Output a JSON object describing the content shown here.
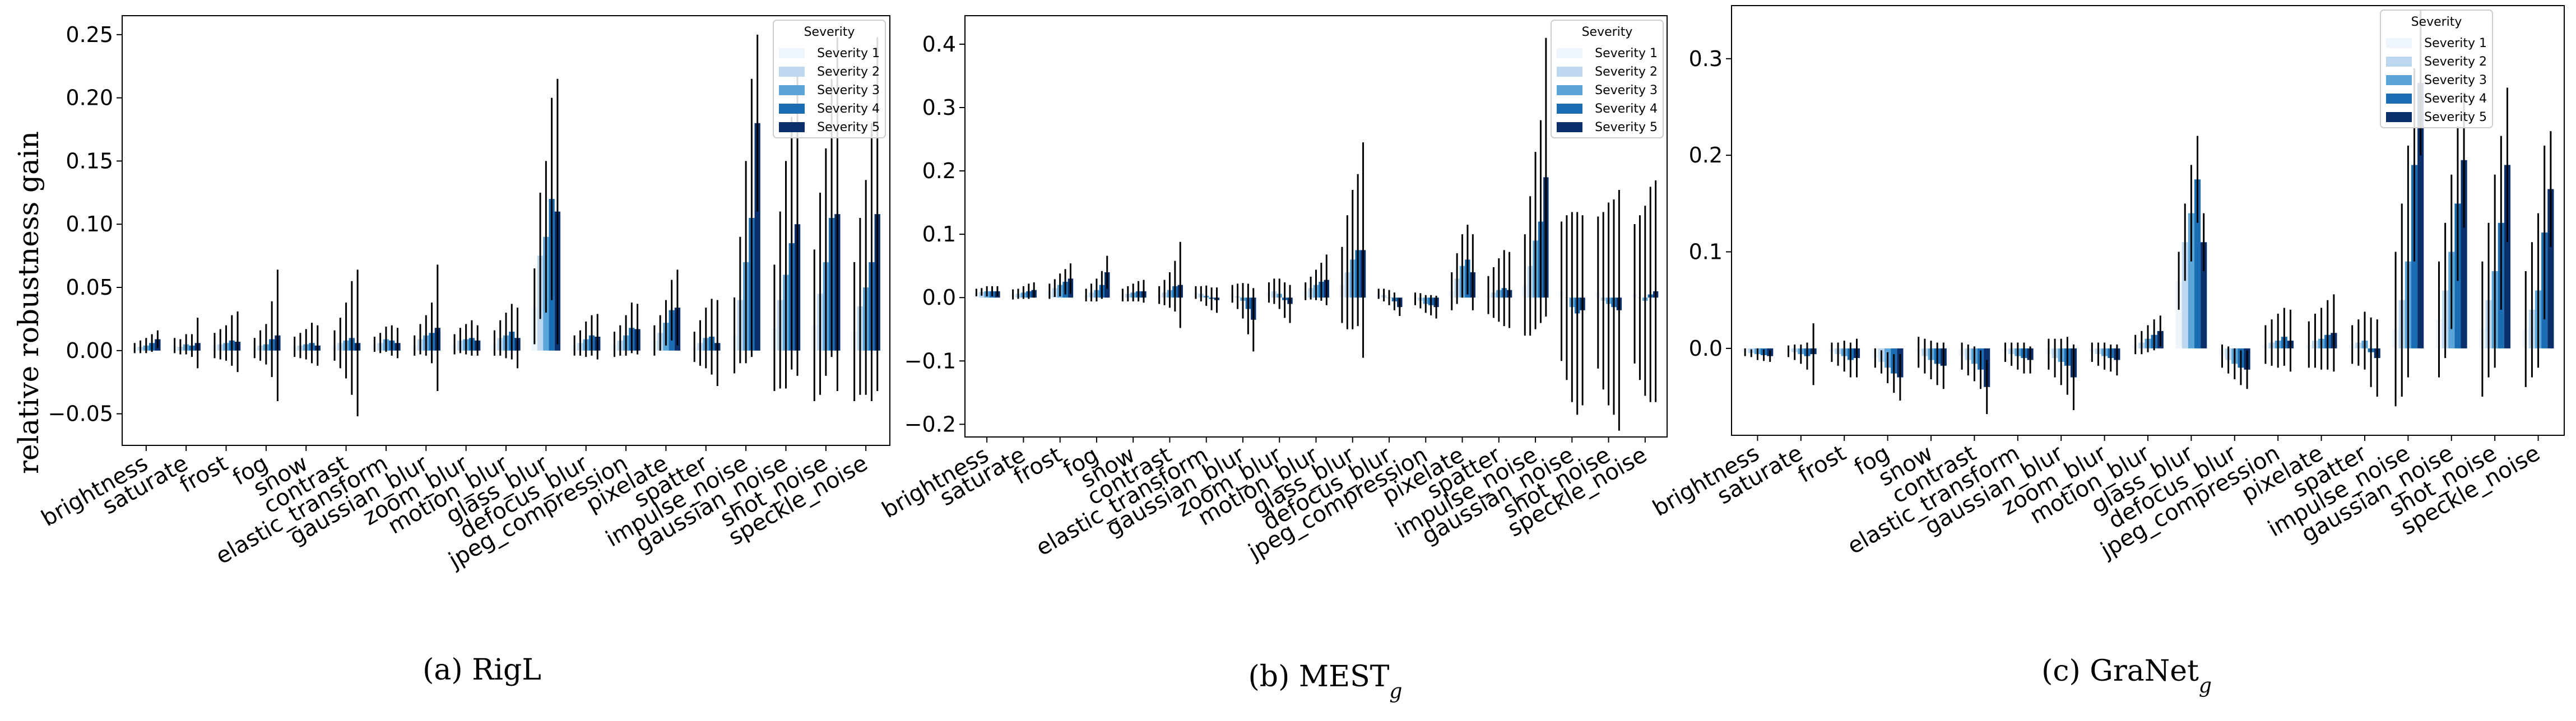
{
  "ylabel": "relative robustness gain",
  "legend_title": "Severity",
  "series_names": [
    "Severity 1",
    "Severity 2",
    "Severity 3",
    "Severity 4",
    "Severity 5"
  ],
  "colors": [
    "#eef5fc",
    "#bdd8ee",
    "#5ba5d8",
    "#1a6db3",
    "#0b2f6b"
  ],
  "categories": [
    "brightness",
    "saturate",
    "frost",
    "fog",
    "snow",
    "contrast",
    "elastic_transform",
    "gaussian_blur",
    "zoom_blur",
    "motion_blur",
    "glass_blur",
    "defocus_blur",
    "jpeg_compression",
    "pixelate",
    "spatter",
    "impulse_noise",
    "gaussian_noise",
    "shot_noise",
    "speckle_noise"
  ],
  "chart_data": [
    {
      "type": "bar",
      "caption_label": "(a)",
      "caption_name": "RigL",
      "ylim": [
        -0.075,
        0.265
      ],
      "yticks": [
        "−0.05",
        "0.00",
        "0.05",
        "0.10",
        "0.15",
        "0.20",
        "0.25"
      ],
      "ytick_values": [
        -0.05,
        0,
        0.05,
        0.1,
        0.15,
        0.2,
        0.25
      ],
      "values": [
        [
          0.002,
          0.003,
          0.004,
          0.006,
          0.009
        ],
        [
          0.004,
          0.003,
          0.005,
          0.004,
          0.006
        ],
        [
          0.004,
          0.005,
          0.006,
          0.008,
          0.007
        ],
        [
          0.002,
          0.004,
          0.005,
          0.009,
          0.012
        ],
        [
          0.003,
          0.004,
          0.005,
          0.006,
          0.004
        ],
        [
          0.004,
          0.006,
          0.008,
          0.01,
          0.006
        ],
        [
          0.005,
          0.006,
          0.009,
          0.008,
          0.006
        ],
        [
          0.004,
          0.009,
          0.012,
          0.014,
          0.018
        ],
        [
          0.005,
          0.008,
          0.009,
          0.01,
          0.008
        ],
        [
          0.006,
          0.01,
          0.012,
          0.015,
          0.01
        ],
        [
          0.035,
          0.075,
          0.09,
          0.12,
          0.11
        ],
        [
          0.004,
          0.006,
          0.009,
          0.012,
          0.011
        ],
        [
          0.005,
          0.008,
          0.012,
          0.018,
          0.017
        ],
        [
          0.008,
          0.014,
          0.022,
          0.032,
          0.034
        ],
        [
          0.003,
          0.006,
          0.01,
          0.011,
          0.006
        ],
        [
          0.012,
          0.04,
          0.07,
          0.105,
          0.18
        ],
        [
          0.018,
          0.04,
          0.06,
          0.085,
          0.1
        ],
        [
          0.02,
          0.045,
          0.07,
          0.105,
          0.108
        ],
        [
          0.015,
          0.035,
          0.05,
          0.07,
          0.108
        ]
      ],
      "errors": [
        [
          0.004,
          0.005,
          0.006,
          0.007,
          0.007
        ],
        [
          0.006,
          0.006,
          0.008,
          0.009,
          0.02
        ],
        [
          0.01,
          0.012,
          0.014,
          0.02,
          0.024
        ],
        [
          0.008,
          0.012,
          0.016,
          0.03,
          0.052
        ],
        [
          0.008,
          0.01,
          0.012,
          0.016,
          0.016
        ],
        [
          0.012,
          0.02,
          0.03,
          0.045,
          0.058
        ],
        [
          0.006,
          0.008,
          0.01,
          0.012,
          0.012
        ],
        [
          0.008,
          0.012,
          0.016,
          0.024,
          0.05
        ],
        [
          0.008,
          0.01,
          0.012,
          0.014,
          0.012
        ],
        [
          0.01,
          0.014,
          0.018,
          0.022,
          0.024
        ],
        [
          0.03,
          0.05,
          0.06,
          0.08,
          0.105
        ],
        [
          0.008,
          0.01,
          0.014,
          0.016,
          0.018
        ],
        [
          0.01,
          0.012,
          0.016,
          0.02,
          0.02
        ],
        [
          0.012,
          0.014,
          0.018,
          0.024,
          0.03
        ],
        [
          0.012,
          0.018,
          0.024,
          0.03,
          0.034
        ],
        [
          0.03,
          0.05,
          0.08,
          0.11,
          0.07
        ],
        [
          0.05,
          0.07,
          0.09,
          0.1,
          0.12
        ],
        [
          0.06,
          0.08,
          0.09,
          0.11,
          0.14
        ],
        [
          0.055,
          0.07,
          0.085,
          0.11,
          0.14
        ]
      ]
    },
    {
      "type": "bar",
      "caption_label": "(b)",
      "caption_name": "MEST",
      "caption_sub": "g",
      "ylim": [
        -0.22,
        0.445
      ],
      "yticks": [
        "−0.2",
        "−0.1",
        "0.0",
        "0.1",
        "0.2",
        "0.3",
        "0.4"
      ],
      "ytick_values": [
        -0.2,
        -0.1,
        0,
        0.1,
        0.2,
        0.3,
        0.4
      ],
      "values": [
        [
          0.008,
          0.009,
          0.01,
          0.01,
          0.01
        ],
        [
          0.005,
          0.006,
          0.008,
          0.01,
          0.012
        ],
        [
          0.01,
          0.015,
          0.02,
          0.025,
          0.03
        ],
        [
          0.004,
          0.008,
          0.012,
          0.02,
          0.04
        ],
        [
          0.004,
          0.006,
          0.008,
          0.01,
          0.01
        ],
        [
          0.004,
          0.008,
          0.012,
          0.018,
          0.02
        ],
        [
          0.008,
          0.006,
          0.003,
          -0.002,
          -0.004
        ],
        [
          0.006,
          0.002,
          -0.005,
          -0.018,
          -0.035
        ],
        [
          0.008,
          0.01,
          0.006,
          -0.004,
          -0.01
        ],
        [
          0.01,
          0.015,
          0.02,
          0.025,
          0.028
        ],
        [
          0.02,
          0.04,
          0.06,
          0.075,
          0.075
        ],
        [
          0.006,
          0.004,
          0.0,
          -0.006,
          -0.015
        ],
        [
          -0.002,
          -0.005,
          -0.01,
          -0.012,
          -0.015
        ],
        [
          0.01,
          0.03,
          0.05,
          0.06,
          0.04
        ],
        [
          0.004,
          0.008,
          0.012,
          0.015,
          0.012
        ],
        [
          0.02,
          0.05,
          0.09,
          0.12,
          0.19
        ],
        [
          0.01,
          0.0,
          -0.015,
          -0.025,
          -0.02
        ],
        [
          0.008,
          -0.005,
          -0.01,
          -0.015,
          -0.02
        ],
        [
          0.006,
          0.0,
          -0.005,
          0.005,
          0.01
        ]
      ],
      "errors": [
        [
          0.006,
          0.006,
          0.008,
          0.008,
          0.008
        ],
        [
          0.008,
          0.008,
          0.01,
          0.012,
          0.012
        ],
        [
          0.012,
          0.014,
          0.018,
          0.02,
          0.024
        ],
        [
          0.01,
          0.014,
          0.018,
          0.022,
          0.026
        ],
        [
          0.01,
          0.012,
          0.014,
          0.016,
          0.018
        ],
        [
          0.014,
          0.02,
          0.028,
          0.04,
          0.068
        ],
        [
          0.01,
          0.012,
          0.016,
          0.018,
          0.02
        ],
        [
          0.014,
          0.02,
          0.028,
          0.04,
          0.05
        ],
        [
          0.016,
          0.02,
          0.024,
          0.028,
          0.03
        ],
        [
          0.014,
          0.018,
          0.024,
          0.03,
          0.04
        ],
        [
          0.06,
          0.09,
          0.11,
          0.12,
          0.17
        ],
        [
          0.008,
          0.01,
          0.012,
          0.014,
          0.014
        ],
        [
          0.01,
          0.012,
          0.014,
          0.016,
          0.018
        ],
        [
          0.03,
          0.04,
          0.05,
          0.055,
          0.06
        ],
        [
          0.03,
          0.04,
          0.05,
          0.06,
          0.06
        ],
        [
          0.08,
          0.11,
          0.14,
          0.16,
          0.22
        ],
        [
          0.11,
          0.13,
          0.15,
          0.16,
          0.15
        ],
        [
          0.12,
          0.14,
          0.16,
          0.17,
          0.19
        ],
        [
          0.11,
          0.13,
          0.15,
          0.17,
          0.175
        ]
      ]
    },
    {
      "type": "bar",
      "caption_label": "(c)",
      "caption_name": "GraNet",
      "caption_sub": "g",
      "ylim": [
        -0.09,
        0.355
      ],
      "yticks": [
        "0.0",
        "0.1",
        "0.2",
        "0.3"
      ],
      "ytick_values": [
        0,
        0.1,
        0.2,
        0.3
      ],
      "values": [
        [
          -0.004,
          -0.005,
          -0.006,
          -0.007,
          -0.008
        ],
        [
          -0.003,
          -0.004,
          -0.006,
          -0.008,
          -0.006
        ],
        [
          -0.004,
          -0.006,
          -0.008,
          -0.012,
          -0.01
        ],
        [
          -0.01,
          -0.014,
          -0.02,
          -0.026,
          -0.03
        ],
        [
          -0.004,
          -0.008,
          -0.012,
          -0.016,
          -0.018
        ],
        [
          -0.008,
          -0.012,
          -0.016,
          -0.022,
          -0.04
        ],
        [
          -0.004,
          -0.006,
          -0.008,
          -0.01,
          -0.012
        ],
        [
          -0.006,
          -0.01,
          -0.014,
          -0.018,
          -0.03
        ],
        [
          -0.004,
          -0.006,
          -0.008,
          -0.01,
          -0.012
        ],
        [
          0.004,
          0.006,
          0.01,
          0.014,
          0.018
        ],
        [
          0.07,
          0.11,
          0.14,
          0.175,
          0.11
        ],
        [
          -0.008,
          -0.012,
          -0.016,
          -0.02,
          -0.022
        ],
        [
          0.004,
          0.006,
          0.008,
          0.012,
          0.008
        ],
        [
          0.004,
          0.008,
          0.01,
          0.014,
          0.016
        ],
        [
          0.004,
          0.006,
          0.008,
          -0.004,
          -0.01
        ],
        [
          0.02,
          0.05,
          0.09,
          0.19,
          0.275
        ],
        [
          0.03,
          0.06,
          0.1,
          0.15,
          0.195
        ],
        [
          0.02,
          0.05,
          0.08,
          0.13,
          0.19
        ],
        [
          0.02,
          0.04,
          0.06,
          0.12,
          0.165
        ]
      ],
      "errors": [
        [
          0.004,
          0.004,
          0.006,
          0.006,
          0.006
        ],
        [
          0.006,
          0.008,
          0.01,
          0.014,
          0.032
        ],
        [
          0.01,
          0.012,
          0.016,
          0.018,
          0.02
        ],
        [
          0.01,
          0.012,
          0.016,
          0.02,
          0.024
        ],
        [
          0.016,
          0.018,
          0.02,
          0.022,
          0.024
        ],
        [
          0.014,
          0.016,
          0.018,
          0.02,
          0.028
        ],
        [
          0.01,
          0.012,
          0.014,
          0.016,
          0.014
        ],
        [
          0.016,
          0.02,
          0.024,
          0.03,
          0.034
        ],
        [
          0.01,
          0.012,
          0.014,
          0.014,
          0.016
        ],
        [
          0.01,
          0.012,
          0.014,
          0.016,
          0.016
        ],
        [
          0.03,
          0.04,
          0.05,
          0.045,
          0.03
        ],
        [
          0.012,
          0.014,
          0.016,
          0.018,
          0.02
        ],
        [
          0.02,
          0.024,
          0.028,
          0.03,
          0.032
        ],
        [
          0.024,
          0.028,
          0.032,
          0.036,
          0.04
        ],
        [
          0.02,
          0.024,
          0.03,
          0.036,
          0.04
        ],
        [
          0.08,
          0.1,
          0.12,
          0.1,
          0.075
        ],
        [
          0.06,
          0.07,
          0.08,
          0.08,
          0.07
        ],
        [
          0.07,
          0.08,
          0.1,
          0.09,
          0.08
        ],
        [
          0.06,
          0.07,
          0.08,
          0.09,
          0.06
        ]
      ]
    }
  ]
}
